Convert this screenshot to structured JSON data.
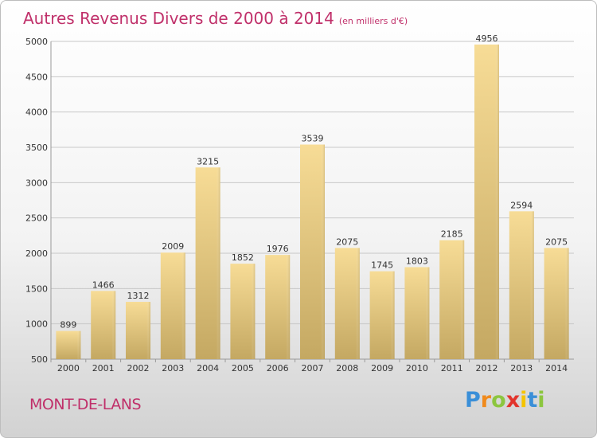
{
  "header": {
    "title": "Autres Revenus Divers de 2000 à 2014",
    "subtitle": "(en milliers d'€)"
  },
  "footer": {
    "commune": "MONT-DE-LANS",
    "brand_letters": [
      "P",
      "r",
      "o",
      "x",
      "i",
      "t",
      "i"
    ],
    "brand_colors": [
      "#3a8fd8",
      "#f08a1c",
      "#8cc63f",
      "#e2342c",
      "#f5c400",
      "#3a8fd8",
      "#8cc63f"
    ]
  },
  "colors": {
    "title": "#c0306a",
    "bar_light": "#f7dc96",
    "bar_dark": "#c4a862",
    "grid": "#c8c8c8",
    "text": "#333333"
  },
  "chart_data": {
    "type": "bar",
    "categories": [
      "2000",
      "2001",
      "2002",
      "2003",
      "2004",
      "2005",
      "2006",
      "2007",
      "2008",
      "2009",
      "2010",
      "2011",
      "2012",
      "2013",
      "2014"
    ],
    "values": [
      899,
      1466,
      1312,
      2009,
      3215,
      1852,
      1976,
      3539,
      2075,
      1745,
      1803,
      2185,
      4956,
      2594,
      2075
    ],
    "ylim": [
      500,
      5000
    ],
    "yticks": [
      500,
      1000,
      1500,
      2000,
      2500,
      3000,
      3500,
      4000,
      4500,
      5000
    ],
    "grid": true
  }
}
